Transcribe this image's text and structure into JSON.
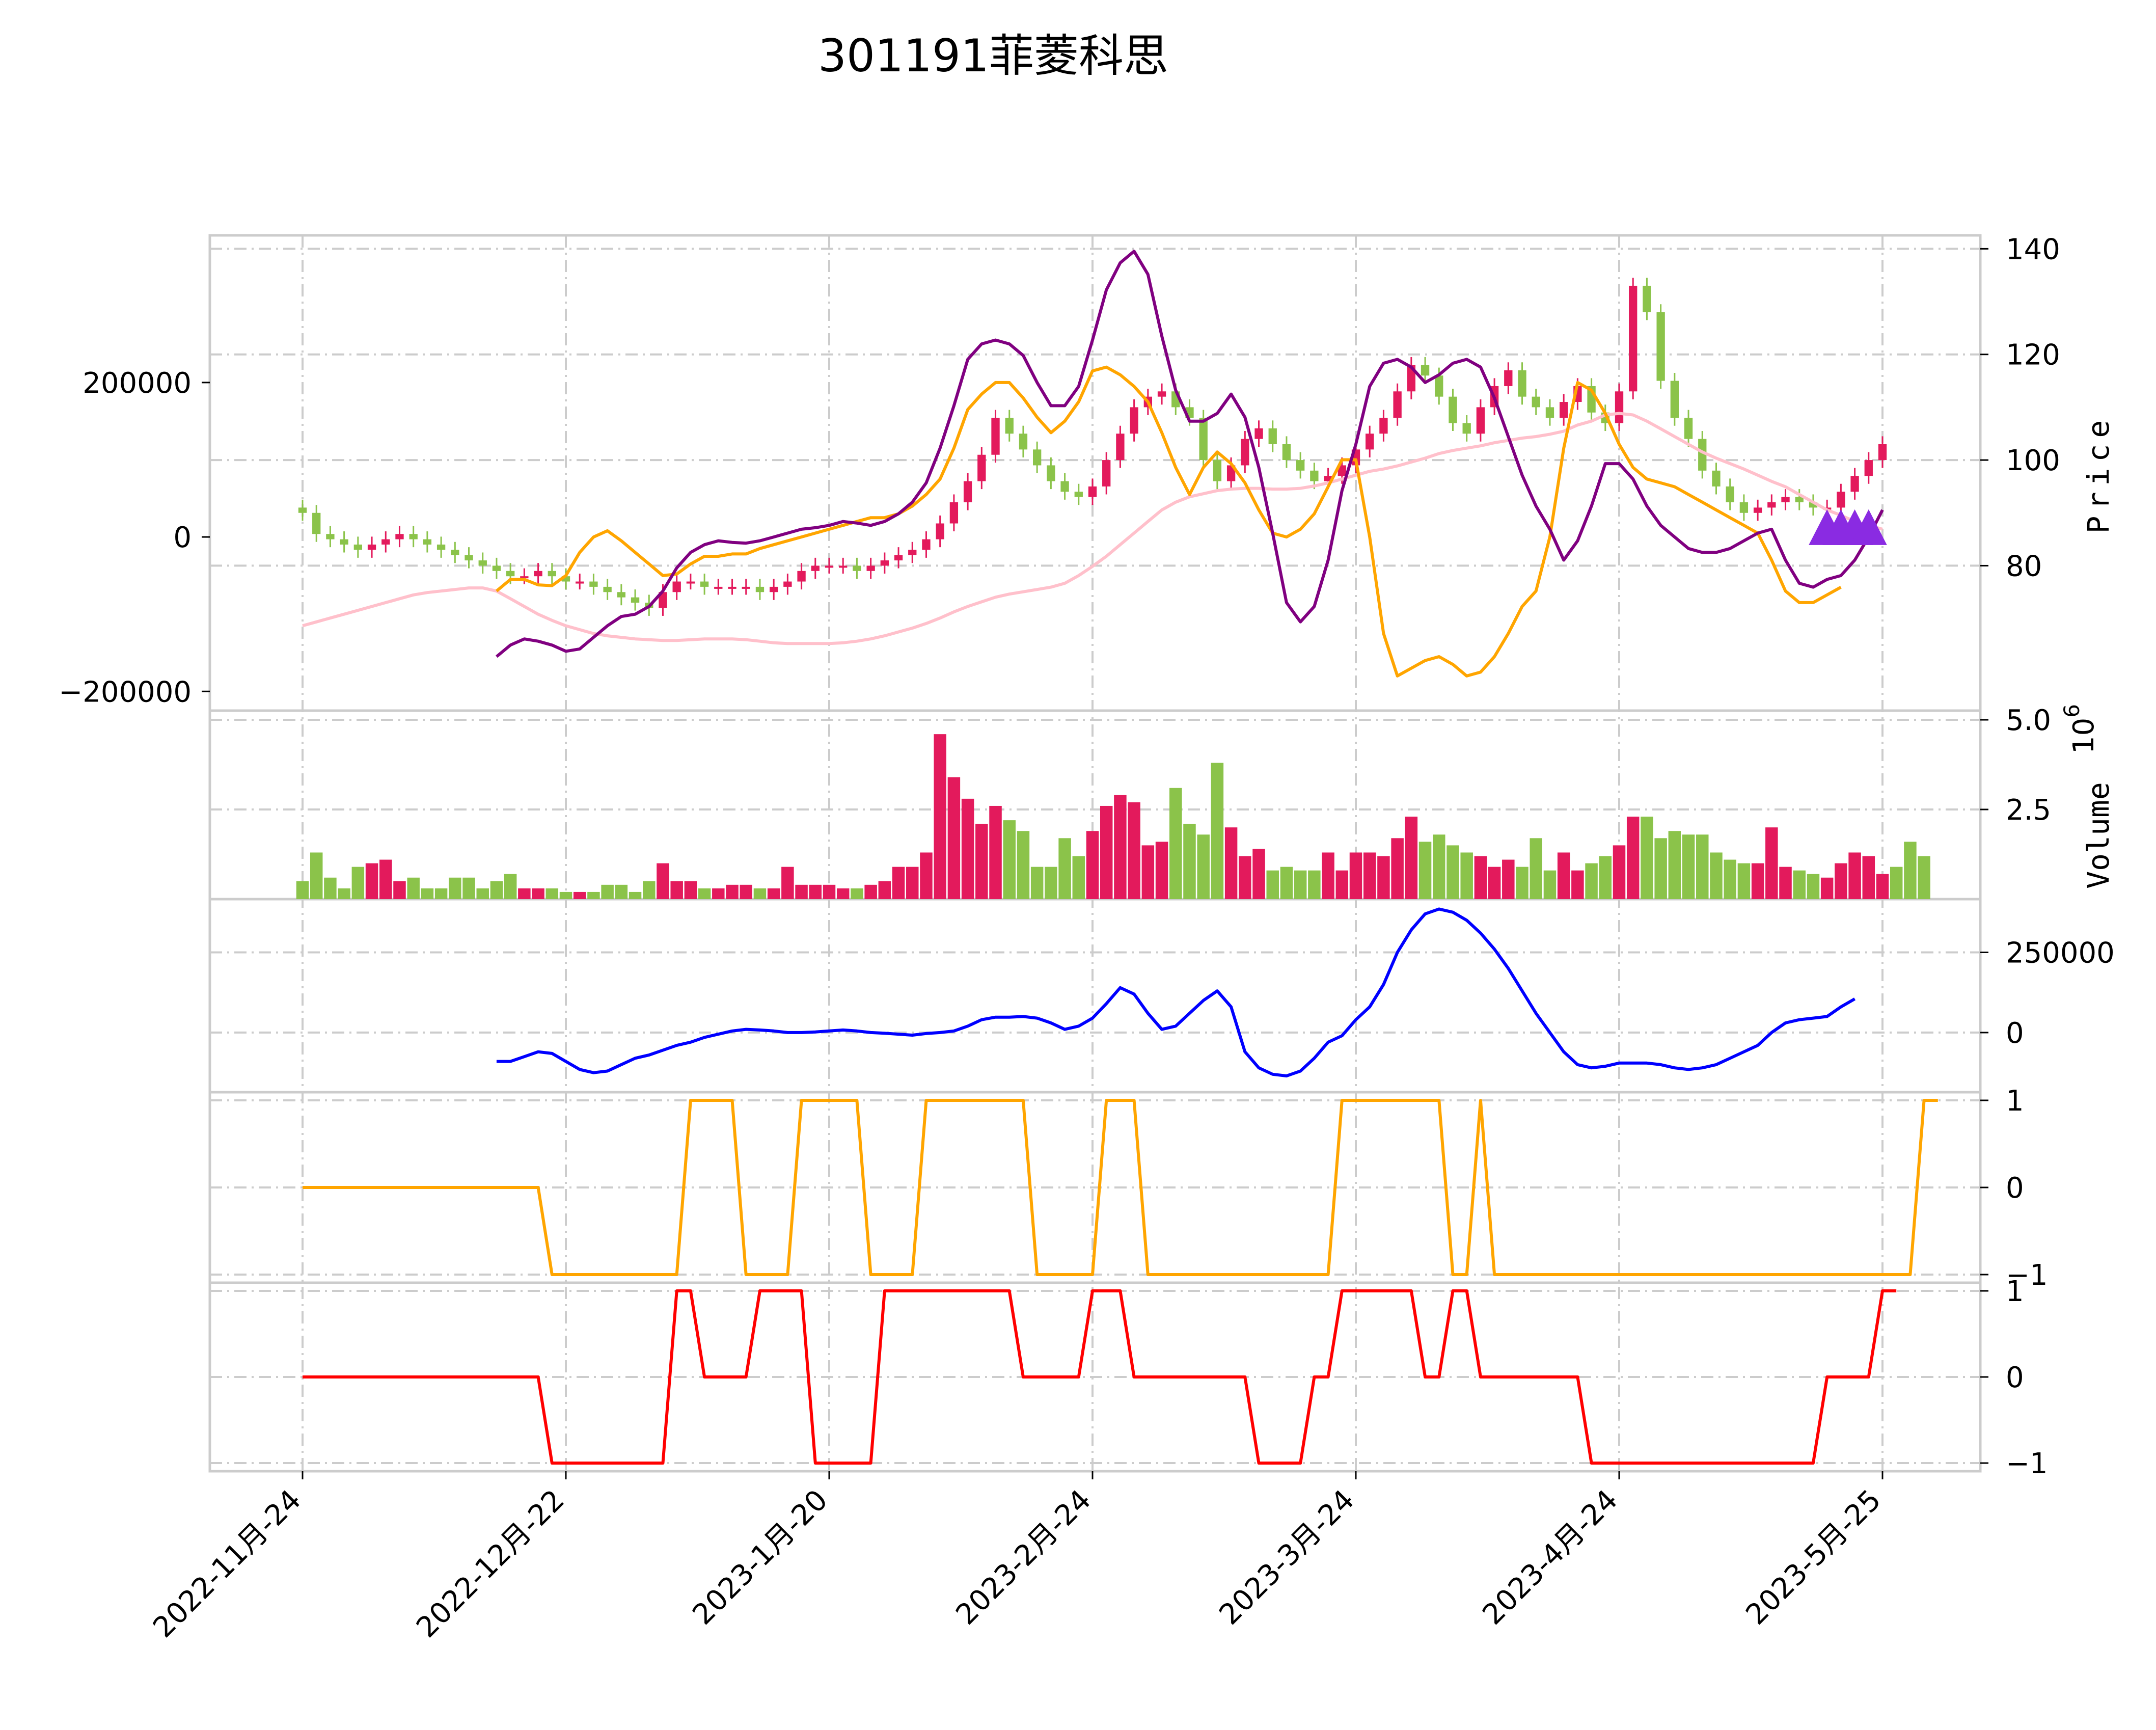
{
  "colors": {
    "up": "#e31a5c",
    "down": "#8bc34a",
    "ma_short": "#ffa500",
    "ma_mid": "#800080",
    "ma_long": "#ffc0cb",
    "marker": "#8a2be2",
    "indicator": "#0000ff",
    "signal1": "#ffa500",
    "signal2": "#ff0000",
    "grid": "#cccccc",
    "frame": "#cccccc"
  },
  "chart_data": {
    "type": "candlestick",
    "title": "301191菲菱科思",
    "x_ticks": [
      "2022-11月-24",
      "2022-12月-22",
      "2023-1月-20",
      "2023-2月-24",
      "2023-3月-24",
      "2023-4月-24",
      "2023-5月-25"
    ],
    "x_tick_index": [
      0,
      19,
      38,
      57,
      76,
      95,
      114
    ],
    "n_bars": 115,
    "panels": [
      {
        "name": "price",
        "ylabel": "Price",
        "right_ticks": [
          "80",
          "100",
          "120",
          "140"
        ],
        "right_range": [
          54,
          141
        ],
        "left_ticks": [
          "−200000",
          "0",
          "200000"
        ],
        "left_range": [
          -215000,
          380000
        ],
        "close": [
          90,
          86,
          85,
          84,
          83,
          84,
          85,
          86,
          85,
          84,
          83,
          82,
          81,
          80,
          79,
          78,
          78,
          79,
          78,
          77,
          77,
          76,
          75,
          74,
          73,
          72,
          75,
          77,
          77,
          76,
          76,
          76,
          76,
          75,
          76,
          77,
          79,
          80,
          80,
          80,
          79,
          80,
          81,
          82,
          83,
          85,
          88,
          92,
          96,
          101,
          108,
          105,
          102,
          99,
          96,
          94,
          93,
          95,
          100,
          105,
          110,
          112,
          113,
          110,
          108,
          100,
          96,
          99,
          104,
          106,
          103,
          100,
          98,
          96,
          97,
          99,
          102,
          105,
          108,
          113,
          118,
          116,
          112,
          107,
          105,
          110,
          114,
          117,
          112,
          110,
          108,
          111,
          114,
          109,
          107,
          113,
          133,
          128,
          115,
          108,
          104,
          98,
          95,
          92,
          90,
          91,
          92,
          93,
          92,
          91,
          91,
          94,
          97,
          100,
          103
        ],
        "ma_short": [
          null,
          null,
          null,
          null,
          null,
          null,
          null,
          null,
          null,
          null,
          null,
          null,
          null,
          null,
          -70000,
          -55000,
          -55000,
          -62000,
          -63000,
          -50000,
          -20000,
          0,
          8000,
          -5000,
          -20000,
          -35000,
          -50000,
          -48000,
          -35000,
          -25000,
          -25000,
          -22000,
          -22000,
          -15000,
          -10000,
          -5000,
          0,
          5000,
          10000,
          15000,
          20000,
          25000,
          25000,
          30000,
          40000,
          55000,
          75000,
          115000,
          165000,
          185000,
          200000,
          200000,
          180000,
          155000,
          135000,
          150000,
          175000,
          215000,
          220000,
          210000,
          195000,
          175000,
          135000,
          90000,
          55000,
          90000,
          110000,
          95000,
          70000,
          35000,
          5000,
          0,
          10000,
          30000,
          65000,
          100000,
          100000,
          0,
          -125000,
          -180000,
          -170000,
          -160000,
          -155000,
          -165000,
          -180000,
          -175000,
          -155000,
          -125000,
          -90000,
          -70000,
          0,
          115000,
          200000,
          190000,
          160000,
          120000,
          90000,
          75000,
          70000,
          65000,
          55000,
          45000,
          35000,
          25000,
          15000,
          5000,
          -30000,
          -70000,
          -85000,
          -85000,
          -75000,
          -65000
        ],
        "ma_mid": [
          null,
          null,
          null,
          null,
          null,
          null,
          null,
          null,
          null,
          null,
          null,
          null,
          null,
          null,
          -155000,
          -140000,
          -132000,
          -135000,
          -140000,
          -148000,
          -145000,
          -130000,
          -115000,
          -103000,
          -100000,
          -90000,
          -70000,
          -40000,
          -20000,
          -10000,
          -5000,
          -7000,
          -8000,
          -5000,
          0,
          5000,
          10000,
          12000,
          15000,
          20000,
          18000,
          15000,
          20000,
          30000,
          45000,
          70000,
          115000,
          170000,
          230000,
          250000,
          255000,
          250000,
          235000,
          200000,
          170000,
          170000,
          195000,
          255000,
          320000,
          355000,
          370000,
          340000,
          260000,
          190000,
          150000,
          150000,
          160000,
          185000,
          155000,
          90000,
          5000,
          -85000,
          -110000,
          -90000,
          -30000,
          60000,
          120000,
          195000,
          225000,
          230000,
          220000,
          200000,
          210000,
          225000,
          230000,
          220000,
          180000,
          130000,
          80000,
          40000,
          10000,
          -30000,
          -5000,
          40000,
          95000,
          95000,
          75000,
          40000,
          15000,
          0,
          -15000,
          -20000,
          -20000,
          -15000,
          -5000,
          5000,
          10000,
          -30000,
          -60000,
          -65000,
          -55000,
          -50000,
          -30000,
          0,
          35000
        ],
        "ma_long": [
          -115000,
          -110000,
          -105000,
          -100000,
          -95000,
          -90000,
          -85000,
          -80000,
          -75000,
          -72000,
          -70000,
          -68000,
          -66000,
          -66000,
          -70000,
          -80000,
          -90000,
          -100000,
          -108000,
          -115000,
          -120000,
          -125000,
          -128000,
          -130000,
          -132000,
          -133000,
          -134000,
          -134000,
          -133000,
          -132000,
          -132000,
          -132000,
          -133000,
          -135000,
          -137000,
          -138000,
          -138000,
          -138000,
          -138000,
          -137000,
          -135000,
          -132000,
          -128000,
          -123000,
          -118000,
          -112000,
          -105000,
          -97000,
          -90000,
          -84000,
          -78000,
          -74000,
          -71000,
          -68000,
          -65000,
          -60000,
          -50000,
          -38000,
          -25000,
          -10000,
          5000,
          20000,
          35000,
          45000,
          52000,
          56000,
          60000,
          62000,
          63000,
          63000,
          62000,
          62000,
          63000,
          66000,
          70000,
          75000,
          80000,
          85000,
          88000,
          92000,
          97000,
          102000,
          108000,
          112000,
          115000,
          118000,
          122000,
          125000,
          128000,
          130000,
          133000,
          137000,
          145000,
          150000,
          158000,
          160000,
          158000,
          150000,
          140000,
          130000,
          120000,
          110000,
          102000,
          95000,
          88000,
          80000,
          72000,
          65000,
          55000,
          45000,
          35000,
          28000,
          20000,
          15000,
          10000
        ],
        "markers": [
          110,
          111,
          112,
          113
        ]
      },
      {
        "name": "volume",
        "ylabel": "Volume",
        "exponent_label": "10",
        "exponent_power": "6",
        "right_ticks": [
          "2.5",
          "5.0"
        ],
        "range": [
          0,
          5.0
        ],
        "values": [
          0.5,
          1.3,
          0.6,
          0.3,
          0.9,
          1.0,
          1.1,
          0.5,
          0.6,
          0.3,
          0.3,
          0.6,
          0.6,
          0.3,
          0.5,
          0.7,
          0.3,
          0.3,
          0.3,
          0.2,
          0.2,
          0.2,
          0.4,
          0.4,
          0.2,
          0.5,
          1.0,
          0.5,
          0.5,
          0.3,
          0.3,
          0.4,
          0.4,
          0.3,
          0.3,
          0.9,
          0.4,
          0.4,
          0.4,
          0.3,
          0.3,
          0.4,
          0.5,
          0.9,
          0.9,
          1.3,
          4.6,
          3.4,
          2.8,
          2.1,
          2.6,
          2.2,
          1.9,
          0.9,
          0.9,
          1.7,
          1.2,
          1.9,
          2.6,
          2.9,
          2.7,
          1.5,
          1.6,
          3.1,
          2.1,
          1.8,
          3.8,
          2.0,
          1.2,
          1.4,
          0.8,
          0.9,
          0.8,
          0.8,
          1.3,
          0.8,
          1.3,
          1.3,
          1.2,
          1.7,
          2.3,
          1.6,
          1.8,
          1.5,
          1.3,
          1.2,
          0.9,
          1.1,
          0.9,
          1.7,
          0.8,
          1.3,
          0.8,
          1.0,
          1.2,
          1.5,
          2.3,
          2.3,
          1.7,
          1.9,
          1.8,
          1.8,
          1.3,
          1.1,
          1.0,
          1.0,
          2.0,
          0.9,
          0.8,
          0.7,
          0.6,
          1.0,
          1.3,
          1.2,
          0.7,
          0.9,
          1.6,
          1.2
        ]
      },
      {
        "name": "indicator",
        "right_ticks": [
          "0",
          "250000"
        ],
        "range": [
          -170000,
          400000
        ],
        "values": [
          null,
          null,
          null,
          null,
          null,
          null,
          null,
          null,
          null,
          null,
          null,
          null,
          null,
          null,
          -90000,
          -90000,
          -75000,
          -60000,
          -65000,
          -90000,
          -115000,
          -125000,
          -120000,
          -100000,
          -80000,
          -70000,
          -55000,
          -40000,
          -30000,
          -15000,
          -5000,
          5000,
          10000,
          8000,
          5000,
          0,
          0,
          2000,
          5000,
          8000,
          5000,
          0,
          -2000,
          -5000,
          -8000,
          -3000,
          0,
          5000,
          20000,
          40000,
          48000,
          48000,
          50000,
          45000,
          30000,
          10000,
          20000,
          45000,
          90000,
          140000,
          120000,
          60000,
          10000,
          20000,
          60000,
          100000,
          130000,
          80000,
          -60000,
          -110000,
          -130000,
          -135000,
          -120000,
          -80000,
          -30000,
          -10000,
          40000,
          80000,
          150000,
          250000,
          320000,
          370000,
          385000,
          375000,
          350000,
          310000,
          260000,
          200000,
          130000,
          60000,
          0,
          -60000,
          -100000,
          -110000,
          -105000,
          -95000,
          -95000,
          -95000,
          -100000,
          -110000,
          -115000,
          -110000,
          -100000,
          -80000,
          -60000,
          -40000,
          0,
          30000,
          40000,
          45000,
          50000,
          80000,
          105000
        ]
      },
      {
        "name": "signal1",
        "right_ticks": [
          "−1",
          "0",
          "1"
        ],
        "range": [
          -1,
          1
        ],
        "values": [
          0,
          0,
          0,
          0,
          0,
          0,
          0,
          0,
          0,
          0,
          0,
          0,
          0,
          0,
          0,
          0,
          0,
          0,
          -1,
          -1,
          -1,
          -1,
          -1,
          -1,
          -1,
          -1,
          -1,
          -1,
          1,
          1,
          1,
          1,
          -1,
          -1,
          -1,
          -1,
          1,
          1,
          1,
          1,
          1,
          -1,
          -1,
          -1,
          -1,
          1,
          1,
          1,
          1,
          1,
          1,
          1,
          1,
          -1,
          -1,
          -1,
          -1,
          -1,
          1,
          1,
          1,
          -1,
          -1,
          -1,
          -1,
          -1,
          -1,
          -1,
          -1,
          -1,
          -1,
          -1,
          -1,
          -1,
          -1,
          1,
          1,
          1,
          1,
          1,
          1,
          1,
          1,
          -1,
          -1,
          1,
          -1,
          -1,
          -1,
          -1,
          -1,
          -1,
          -1,
          -1,
          -1,
          -1,
          -1,
          -1,
          -1,
          -1,
          -1,
          -1,
          -1,
          -1,
          -1,
          -1,
          -1,
          -1,
          -1,
          -1,
          -1,
          -1,
          -1,
          -1,
          -1,
          -1,
          -1,
          1,
          1
        ]
      },
      {
        "name": "signal2",
        "right_ticks": [
          "−1",
          "0",
          "1"
        ],
        "range": [
          -1,
          1
        ],
        "values": [
          0,
          0,
          0,
          0,
          0,
          0,
          0,
          0,
          0,
          0,
          0,
          0,
          0,
          0,
          0,
          0,
          0,
          0,
          -1,
          -1,
          -1,
          -1,
          -1,
          -1,
          -1,
          -1,
          -1,
          1,
          1,
          0,
          0,
          0,
          0,
          1,
          1,
          1,
          1,
          -1,
          -1,
          -1,
          -1,
          -1,
          1,
          1,
          1,
          1,
          1,
          1,
          1,
          1,
          1,
          1,
          0,
          0,
          0,
          0,
          0,
          1,
          1,
          1,
          0,
          0,
          0,
          0,
          0,
          0,
          0,
          0,
          0,
          -1,
          -1,
          -1,
          -1,
          0,
          0,
          1,
          1,
          1,
          1,
          1,
          1,
          0,
          0,
          1,
          1,
          0,
          0,
          0,
          0,
          0,
          0,
          0,
          0,
          -1,
          -1,
          -1,
          -1,
          -1,
          -1,
          -1,
          -1,
          -1,
          -1,
          -1,
          -1,
          -1,
          -1,
          -1,
          -1,
          -1,
          0,
          0,
          0,
          0,
          1,
          1
        ]
      }
    ]
  }
}
